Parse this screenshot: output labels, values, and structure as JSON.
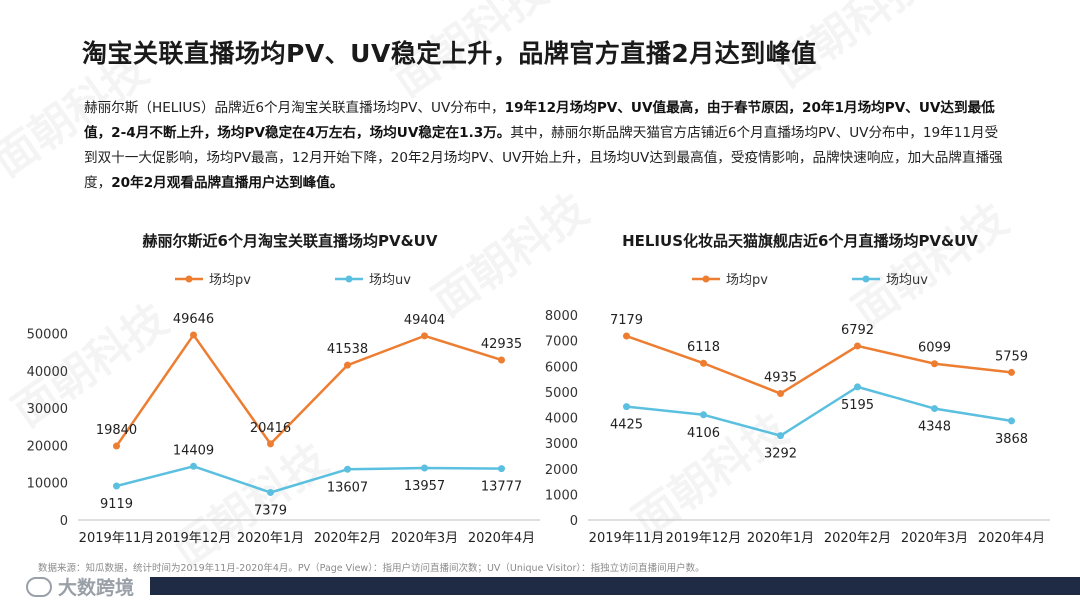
{
  "title": "淘宝关联直播场均PV、UV稳定上升，品牌官方直播2月达到峰值",
  "description": [
    {
      "text": "赫丽尔斯（HELIUS）品牌近6个月淘宝关联直播场均PV、UV分布中，",
      "bold": false
    },
    {
      "text": "19年12月场均PV、UV值最高，由于春节原因，20年1月场均PV、UV达到最低值，2-4月不断上升，场均PV稳定在4万左右，场均UV稳定在1.3万。",
      "bold": true
    },
    {
      "text": "其中，赫丽尔斯品牌天猫官方店铺近6个月直播场均PV、UV分布中，19年11月受到双十一大促影响，场均PV最高，12月开始下降，20年2月场均PV、UV开始上升，且场均UV达到最高值，受疫情影响，品牌快速响应，加大品牌直播强度，",
      "bold": false
    },
    {
      "text": "20年2月观看品牌直播用户达到峰值。",
      "bold": true
    }
  ],
  "chart_data": [
    {
      "type": "line",
      "title": "赫丽尔斯近6个月淘宝关联直播场均PV&UV",
      "categories": [
        "2019年11月",
        "2019年12月",
        "2020年1月",
        "2020年2月",
        "2020年3月",
        "2020年4月"
      ],
      "series": [
        {
          "name": "场均pv",
          "color": "#ED7D31",
          "values": [
            19840,
            49646,
            20416,
            41538,
            49404,
            42935
          ]
        },
        {
          "name": "场均uv",
          "color": "#5BC0E0",
          "values": [
            9119,
            14409,
            7379,
            13607,
            13957,
            13777
          ]
        }
      ],
      "yticks": [
        0,
        10000,
        20000,
        30000,
        40000,
        50000
      ],
      "ylim": [
        0,
        55000
      ],
      "legend": "top",
      "grid": false
    },
    {
      "type": "line",
      "title": "HELIUS化妆品天猫旗舰店近6个月直播场均PV&UV",
      "categories": [
        "2019年11月",
        "2019年12月",
        "2020年1月",
        "2020年2月",
        "2020年3月",
        "2020年4月"
      ],
      "series": [
        {
          "name": "场均pv",
          "color": "#ED7D31",
          "values": [
            7179,
            6118,
            4935,
            6792,
            6099,
            5759
          ]
        },
        {
          "name": "场均uv",
          "color": "#5BC0E0",
          "values": [
            4425,
            4106,
            3292,
            5195,
            4348,
            3868
          ]
        }
      ],
      "yticks": [
        0,
        1000,
        2000,
        3000,
        4000,
        5000,
        6000,
        7000,
        8000
      ],
      "ylim": [
        0,
        8000
      ],
      "legend": "top",
      "grid": false
    }
  ],
  "footer": {
    "source": "数据来源：知瓜数据，统计时间为2019年11月-2020年4月。PV（Page View）：指用户访问直播间次数；UV（Unique Visitor）：指独立访问直播间用户数。",
    "logo_text": "大数跨境"
  },
  "watermark": "面朝科技"
}
